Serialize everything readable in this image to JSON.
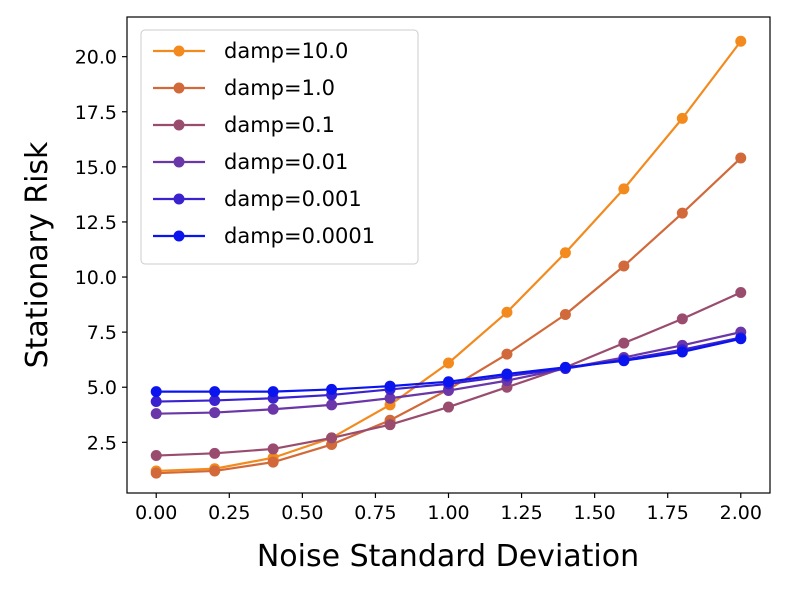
{
  "chart_data": {
    "type": "line",
    "title": "",
    "xlabel": "Noise Standard Deviation",
    "ylabel": "Stationary Risk",
    "xlim": [
      -0.1,
      2.1
    ],
    "ylim": [
      0.2,
      21.8
    ],
    "xticks": [
      0.0,
      0.25,
      0.5,
      0.75,
      1.0,
      1.25,
      1.5,
      1.75,
      2.0
    ],
    "xtick_labels": [
      "0.00",
      "0.25",
      "0.50",
      "0.75",
      "1.00",
      "1.25",
      "1.50",
      "1.75",
      "2.00"
    ],
    "yticks": [
      2.5,
      5.0,
      7.5,
      10.0,
      12.5,
      15.0,
      17.5,
      20.0
    ],
    "ytick_labels": [
      "2.5",
      "5.0",
      "7.5",
      "10.0",
      "12.5",
      "15.0",
      "17.5",
      "20.0"
    ],
    "grid": false,
    "legend_position": "top-left",
    "x": [
      0.0,
      0.2,
      0.4,
      0.6,
      0.8,
      1.0,
      1.2,
      1.4,
      1.6,
      1.8,
      2.0
    ],
    "series": [
      {
        "name": "damp=10.0",
        "color": "#f28a1e",
        "values": [
          1.2,
          1.3,
          1.8,
          2.7,
          4.2,
          6.1,
          8.4,
          11.1,
          14.0,
          17.2,
          20.7
        ]
      },
      {
        "name": "damp=1.0",
        "color": "#d2693a",
        "values": [
          1.1,
          1.2,
          1.6,
          2.4,
          3.5,
          4.9,
          6.5,
          8.3,
          10.5,
          12.9,
          15.4
        ]
      },
      {
        "name": "damp=0.1",
        "color": "#9a4c6e",
        "values": [
          1.9,
          2.0,
          2.2,
          2.7,
          3.3,
          4.1,
          5.0,
          5.9,
          7.0,
          8.1,
          9.3
        ]
      },
      {
        "name": "damp=0.01",
        "color": "#6a36a8",
        "values": [
          3.8,
          3.85,
          4.0,
          4.2,
          4.5,
          4.85,
          5.3,
          5.85,
          6.35,
          6.9,
          7.5
        ]
      },
      {
        "name": "damp=0.001",
        "color": "#3a22cf",
        "values": [
          4.35,
          4.4,
          4.5,
          4.65,
          4.9,
          5.15,
          5.5,
          5.85,
          6.25,
          6.7,
          7.25
        ]
      },
      {
        "name": "damp=0.0001",
        "color": "#0a14ef",
        "values": [
          4.8,
          4.8,
          4.8,
          4.9,
          5.05,
          5.25,
          5.6,
          5.9,
          6.2,
          6.6,
          7.2
        ]
      }
    ]
  }
}
